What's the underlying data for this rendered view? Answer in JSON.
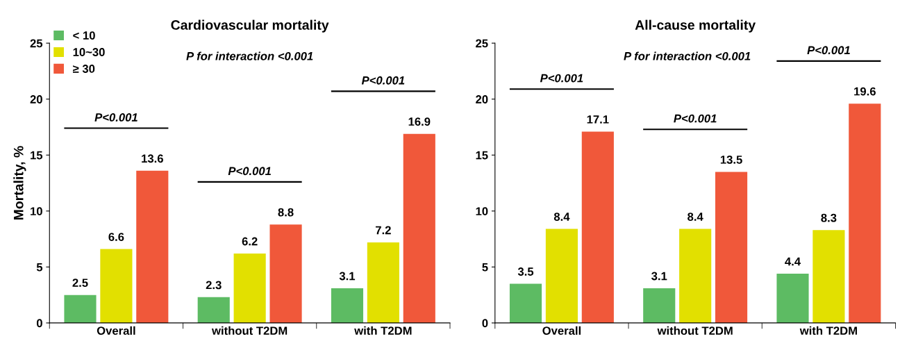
{
  "chart_data": [
    {
      "type": "bar",
      "title": "Cardiovascular mortality",
      "ylabel": "Mortality, %",
      "categories": [
        "Overall",
        "without T2DM",
        "with T2DM"
      ],
      "series": [
        {
          "name": "< 10",
          "color": "#5dbb63",
          "values": [
            2.5,
            2.3,
            3.1
          ]
        },
        {
          "name": "10~30",
          "color": "#e2e000",
          "values": [
            6.6,
            6.2,
            7.2
          ]
        },
        {
          "name": "≥ 30",
          "color": "#f0583a",
          "values": [
            13.6,
            8.8,
            16.9
          ]
        }
      ],
      "ylim": [
        0,
        25
      ],
      "yticks": [
        0,
        5,
        10,
        15,
        20,
        25
      ],
      "data_labels": true,
      "legend": "top left",
      "grid": false,
      "annotations": [
        "P for interaction <0.001",
        "P<0.001",
        "P<0.001",
        "P<0.001"
      ]
    },
    {
      "type": "bar",
      "title": "All-cause mortality",
      "categories": [
        "Overall",
        "without T2DM",
        "with T2DM"
      ],
      "series": [
        {
          "color": "#5dbb63",
          "values": [
            3.5,
            3.1,
            4.4
          ]
        },
        {
          "color": "#e2e000",
          "values": [
            8.4,
            8.4,
            8.3
          ]
        },
        {
          "color": "#f0583a",
          "values": [
            17.1,
            13.5,
            19.6
          ]
        }
      ],
      "ylim": [
        0,
        25
      ],
      "yticks": [
        0,
        5,
        10,
        15,
        20,
        25
      ],
      "data_labels": true,
      "legend": false,
      "grid": false,
      "annotations": [
        "P for interaction <0.001",
        "P<0.001",
        "P<0.001",
        "P<0.001"
      ]
    }
  ]
}
